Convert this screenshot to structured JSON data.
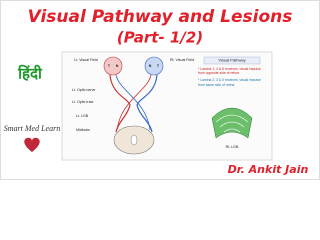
{
  "header": {
    "title": "Visual Pathway and Lesions",
    "subtitle": "(Part- 1/2)"
  },
  "language": "हिंदी",
  "brand": "Smart Med Learn",
  "author": "Dr. Ankit Jain",
  "diagram": {
    "left_field": "Lt. Visual Field",
    "right_field": "Rt. Visual Field",
    "eye_letters": [
      "T",
      "N",
      "N",
      "T"
    ],
    "labels": [
      "Lt. Optic nerve",
      "Lt. Optic tract",
      "Lt. LGB",
      "Midbrain"
    ],
    "right_lgb": "Rt. LGB"
  },
  "panel": {
    "title": "Visual Pathway",
    "notes": [
      "* Lamina 1, 4 & 6 receives, visual impulse from opposite side of retina",
      "* Lamina 2, 3 & 5 receives, visual impulse from same side of retina"
    ]
  }
}
